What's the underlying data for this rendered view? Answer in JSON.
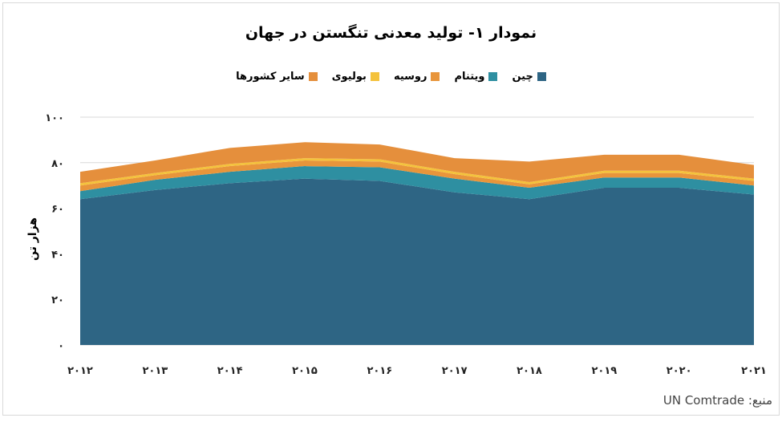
{
  "title": "نمودار ۱- تولید معدنی تنگستن در جهان",
  "source": "منبع: UN Comtrade",
  "chart_data": {
    "type": "area",
    "stacked": true,
    "title": "نمودار ۱- تولید معدنی تنگستن در جهان",
    "ylabel": "هزار تن",
    "xlabel": "",
    "ylim": [
      0,
      100
    ],
    "yticks": [
      0,
      20,
      40,
      60,
      80,
      100
    ],
    "ytick_labels": [
      "۰",
      "۲۰",
      "۴۰",
      "۶۰",
      "۸۰",
      "۱۰۰"
    ],
    "x": [
      "2012",
      "2013",
      "2014",
      "2015",
      "2016",
      "2017",
      "2018",
      "2019",
      "2020",
      "2021"
    ],
    "xtick_labels": [
      "۲۰۱۲",
      "۲۰۱۳",
      "۲۰۱۴",
      "۲۰۱۵",
      "۲۰۱۶",
      "۲۰۱۷",
      "۲۰۱۸",
      "۲۰۱۹",
      "۲۰۲۰",
      "۲۰۲۱"
    ],
    "grid": true,
    "legend_position": "top",
    "series": [
      {
        "name": "چین",
        "color": "#2e6584",
        "values": [
          64,
          68,
          71,
          73,
          72,
          67,
          64,
          69,
          69,
          66
        ]
      },
      {
        "name": "ویتنام",
        "color": "#2e8fa1",
        "values": [
          3.5,
          4.5,
          5,
          5.5,
          6,
          6,
          5,
          4.5,
          4.5,
          4
        ]
      },
      {
        "name": "روسیه",
        "color": "#e8953b",
        "values": [
          2.5,
          2,
          2.5,
          2.5,
          2.5,
          2,
          1.5,
          2,
          2,
          2
        ]
      },
      {
        "name": "بولیوی",
        "color": "#f4c23c",
        "values": [
          1,
          1,
          1,
          1,
          1,
          1,
          1,
          1,
          1,
          1
        ]
      },
      {
        "name": "سایر کشورها",
        "color": "#e58f3c",
        "values": [
          5,
          5.5,
          7,
          7,
          6.5,
          6,
          9,
          7,
          7,
          6
        ]
      }
    ]
  }
}
